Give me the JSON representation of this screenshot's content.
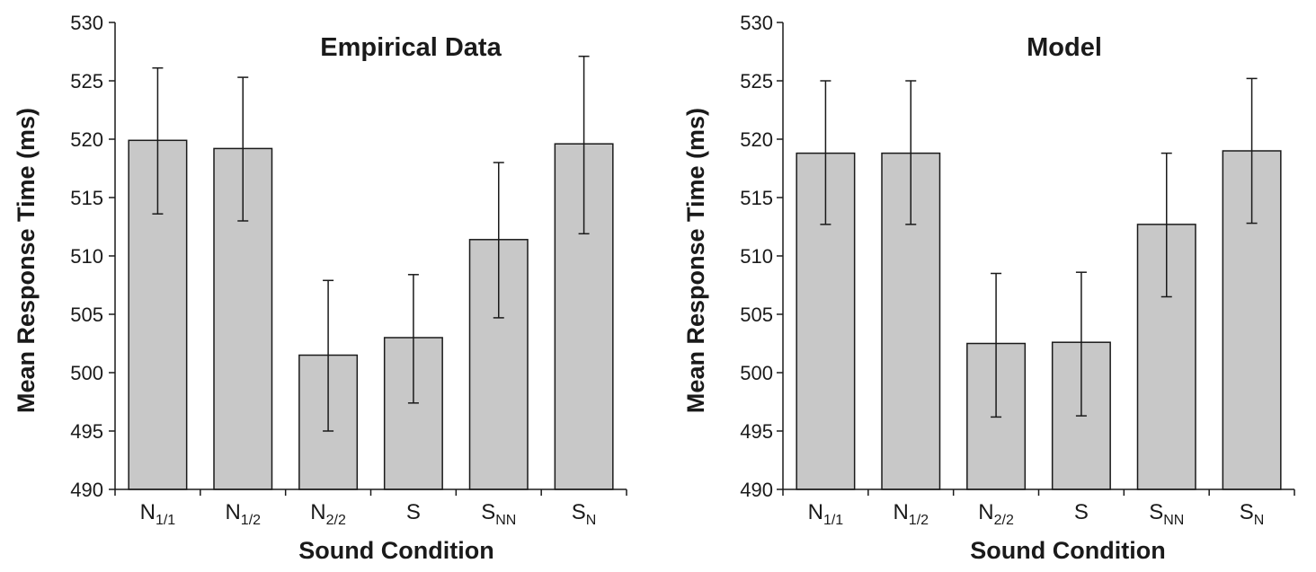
{
  "chart_data": [
    {
      "type": "bar",
      "title": "Empirical Data",
      "xlabel": "Sound Condition",
      "ylabel": "Mean Response Time (ms)",
      "ylim": [
        490,
        530
      ],
      "yticks": [
        490,
        495,
        500,
        505,
        510,
        515,
        520,
        525,
        530
      ],
      "categories": [
        {
          "base": "N",
          "sub": "1/1"
        },
        {
          "base": "N",
          "sub": "1/2"
        },
        {
          "base": "N",
          "sub": "2/2"
        },
        {
          "base": "S",
          "sub": ""
        },
        {
          "base": "S",
          "sub": "NN"
        },
        {
          "base": "S",
          "sub": "N"
        }
      ],
      "values": [
        519.9,
        519.2,
        501.5,
        503.0,
        511.4,
        519.6
      ],
      "error_low": [
        513.6,
        513.0,
        495.0,
        497.4,
        504.7,
        511.9
      ],
      "error_high": [
        526.1,
        525.3,
        507.9,
        508.4,
        518.0,
        527.1
      ],
      "bar_color": "#c8c8c8",
      "grid": false,
      "legend": "none"
    },
    {
      "type": "bar",
      "title": "Model",
      "xlabel": "Sound Condition",
      "ylabel": "Mean Response Time (ms)",
      "ylim": [
        490,
        530
      ],
      "yticks": [
        490,
        495,
        500,
        505,
        510,
        515,
        520,
        525,
        530
      ],
      "categories": [
        {
          "base": "N",
          "sub": "1/1"
        },
        {
          "base": "N",
          "sub": "1/2"
        },
        {
          "base": "N",
          "sub": "2/2"
        },
        {
          "base": "S",
          "sub": ""
        },
        {
          "base": "S",
          "sub": "NN"
        },
        {
          "base": "S",
          "sub": "N"
        }
      ],
      "values": [
        518.8,
        518.8,
        502.5,
        502.6,
        512.7,
        519.0
      ],
      "error_low": [
        512.7,
        512.7,
        496.2,
        496.3,
        506.5,
        512.8
      ],
      "error_high": [
        525.0,
        525.0,
        508.5,
        508.6,
        518.8,
        525.2
      ],
      "bar_color": "#c8c8c8",
      "grid": false,
      "legend": "none"
    }
  ]
}
